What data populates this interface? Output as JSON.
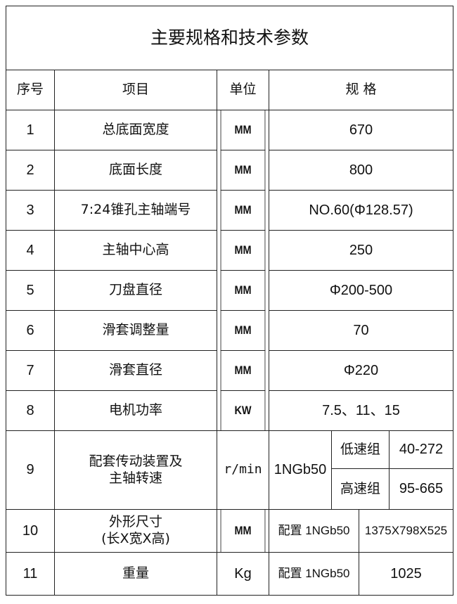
{
  "title": "主要规格和技术参数",
  "headers": [
    "序号",
    "项目",
    "单位",
    "规 格"
  ],
  "rows": [
    {
      "no": "1",
      "item": "总底面宽度",
      "unit": "MM",
      "spec": "670"
    },
    {
      "no": "2",
      "item": "底面长度",
      "unit": "MM",
      "spec": "800"
    },
    {
      "no": "3",
      "item": "7:24锥孔主轴端号",
      "unit": "MM",
      "spec": "NO.60(Φ128.57)"
    },
    {
      "no": "4",
      "item": "主轴中心高",
      "unit": "MM",
      "spec": "250"
    },
    {
      "no": "5",
      "item": "刀盘直径",
      "unit": "MM",
      "spec": "Φ200-500"
    },
    {
      "no": "6",
      "item": "滑套调整量",
      "unit": "MM",
      "spec": "70"
    },
    {
      "no": "7",
      "item": "滑套直径",
      "unit": "MM",
      "spec": "Φ220"
    },
    {
      "no": "8",
      "item": "电机功率",
      "unit": "KW",
      "spec": "7.5、11、15"
    }
  ],
  "row9": {
    "no": "9",
    "item_line1": "配套传动装置及",
    "item_line2": "主轴转速",
    "unit": "r/min",
    "model": "1NGb50",
    "low_label": "低速组",
    "low_value": "40-272",
    "high_label": "高速组",
    "high_value": "95-665"
  },
  "row10": {
    "no": "10",
    "item_line1": "外形尺寸",
    "item_line2": "(长X宽X高)",
    "unit": "MM",
    "config": "配置 1NGb50",
    "value": "1375X798X525"
  },
  "row11": {
    "no": "11",
    "item": "重量",
    "unit": "Kg",
    "config": "配置 1NGb50",
    "value": "1025"
  }
}
